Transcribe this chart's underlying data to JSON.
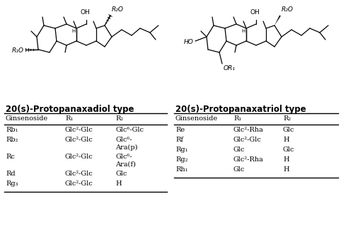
{
  "title_left": "20(s)-Protopanaxadiol type",
  "title_right": "20(s)-Protopanaxatriol type",
  "bg_color": "#ffffff",
  "left_table": {
    "header": [
      "Ginsenoside",
      "R₁",
      "R₂"
    ],
    "rows": [
      [
        "Rb₁",
        "Glc²-Glc",
        "Glc⁶-Glc"
      ],
      [
        "Rb₂",
        "Glc²-Glc",
        "Glc⁶-\nAra(p)"
      ],
      [
        "Rc",
        "Glc²-Glc",
        "Glc⁶-\nAra(f)"
      ],
      [
        "Rd",
        "Glc²-Glc",
        "Glc"
      ],
      [
        "Rg₃",
        "Glc²-Glc",
        "H"
      ]
    ]
  },
  "right_table": {
    "header": [
      "Ginsenoside",
      "R₁",
      "R₂"
    ],
    "rows": [
      [
        "Re",
        "Glc²-Rha",
        "Glc"
      ],
      [
        "Rf",
        "Glc²-Glc",
        "H"
      ],
      [
        "Rg₁",
        "Glc",
        "Glc"
      ],
      [
        "Rg₂",
        "Glc²-Rha",
        "H"
      ],
      [
        "Rh₁",
        "Glc",
        "H"
      ]
    ]
  }
}
